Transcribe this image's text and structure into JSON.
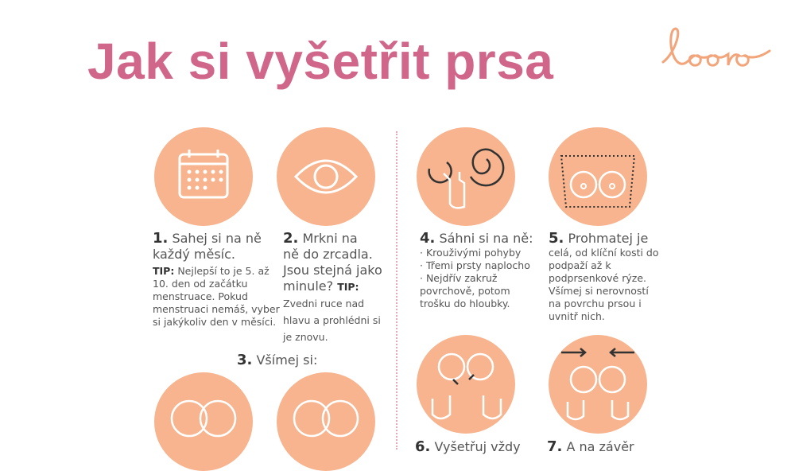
{
  "title": "Jak si vyšetřit prsa",
  "logo": "looro",
  "colors": {
    "title": "#d0668a",
    "circle": "#f7b48e",
    "logo": "#f2a57a",
    "divider": "#e7a9b6"
  },
  "steps": [
    {
      "num": "1.",
      "head": "Sahej si na ně každý měsíc.",
      "tip_label": "TIP:",
      "body": "Nejlepší to je 5. až 10. den od začátku menstruace. Pokud menstruaci nemáš, vyber si jakýkoliv den v měsíci.",
      "icon": "calendar-icon"
    },
    {
      "num": "2.",
      "head_lines": [
        "Mrkni na",
        "ně do zrcadla.",
        "Jsou stejná jako",
        "minule?"
      ],
      "tip_label": "TIP:",
      "body": "Zvedni ruce nad hlavu a prohlédni si je znovu.",
      "icon": "eye-icon"
    },
    {
      "num": "3.",
      "head": "Všímej si:",
      "icon": "breasts-icon"
    },
    {
      "num": "4.",
      "head": "Sáhni si na ně:",
      "bullets": [
        "Krouživými pohyby",
        "Třemi prsty naplocho",
        "Nejdřív zakruž povrchově, potom trošku do hloubky."
      ],
      "icon": "circular-motion-hand-icon"
    },
    {
      "num": "5.",
      "head": "Prohmatej je",
      "body": "celá, od klíční kosti do podpaží až k podprsenkové rýze. Všímej si nerovností na povrchu prsou i uvnitř nich.",
      "icon": "breast-area-icon"
    },
    {
      "num": "6.",
      "head": "Vyšetřuj vždy",
      "icon": "hands-breasts-icon"
    },
    {
      "num": "7.",
      "head": "A na závěr",
      "icon": "arrows-breasts-icon"
    }
  ]
}
